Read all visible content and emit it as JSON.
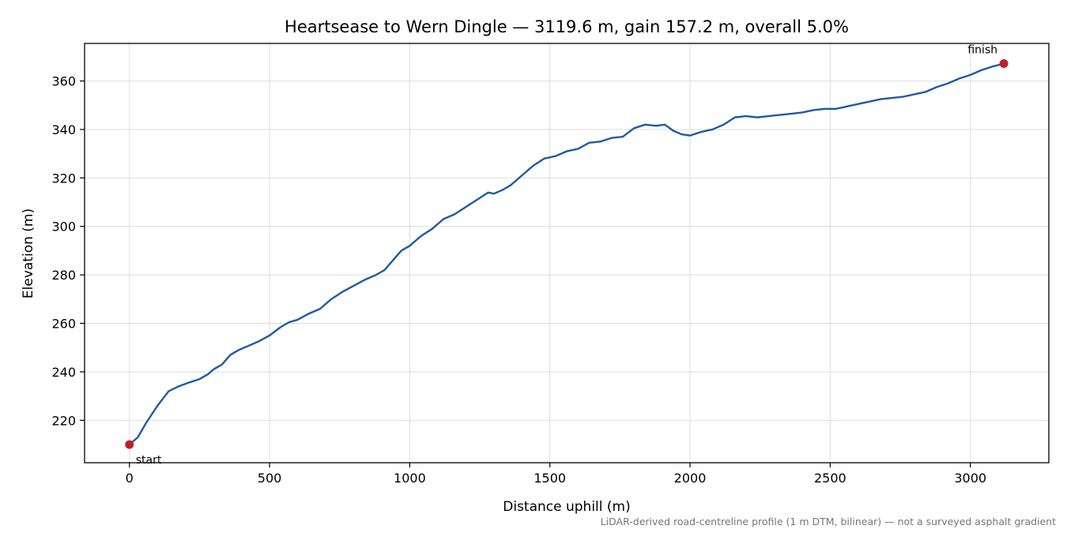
{
  "chart_data": {
    "type": "line",
    "title": "Heartsease to Wern Dingle — 3119.6 m, gain 157.2 m, overall 5.0%",
    "xlabel": "Distance uphill (m)",
    "ylabel": "Elevation (m)",
    "footnote": "LiDAR-derived road-centreline profile (1 m DTM, bilinear) — not a surveyed asphalt gradient",
    "xlim": [
      -160,
      3280
    ],
    "ylim": [
      202.5,
      375.5
    ],
    "xticks": [
      0,
      500,
      1000,
      1500,
      2000,
      2500,
      3000
    ],
    "yticks": [
      220,
      240,
      260,
      280,
      300,
      320,
      340,
      360
    ],
    "grid": true,
    "line_color": "#1f5aa6",
    "marker_color": "#c41e2a",
    "series": [
      {
        "x": [
          0,
          30,
          60,
          100,
          140,
          175,
          210,
          250,
          280,
          300,
          330,
          360,
          390,
          420,
          460,
          500,
          540,
          570,
          600,
          640,
          680,
          720,
          760,
          800,
          840,
          880,
          910,
          940,
          970,
          1000,
          1040,
          1080,
          1120,
          1160,
          1200,
          1240,
          1280,
          1300,
          1330,
          1360,
          1400,
          1440,
          1480,
          1520,
          1560,
          1600,
          1640,
          1680,
          1720,
          1760,
          1800,
          1840,
          1880,
          1910,
          1940,
          1970,
          2000,
          2040,
          2080,
          2120,
          2160,
          2200,
          2240,
          2280,
          2320,
          2360,
          2400,
          2440,
          2480,
          2520,
          2560,
          2600,
          2640,
          2680,
          2720,
          2760,
          2800,
          2840,
          2880,
          2920,
          2960,
          3000,
          3040,
          3080,
          3119.6
        ],
        "y": [
          210,
          213,
          219,
          226,
          232,
          234,
          235.5,
          237,
          239,
          241,
          243,
          247,
          249,
          250.5,
          252.5,
          255,
          258.5,
          260.5,
          261.5,
          264,
          266,
          270,
          273,
          275.5,
          278,
          280,
          282,
          286,
          290,
          292,
          296,
          299,
          303,
          305,
          308,
          311,
          314,
          313.5,
          315,
          317,
          321,
          325,
          328,
          329,
          331,
          332,
          334.5,
          335,
          336.5,
          337,
          340.5,
          342,
          341.5,
          342,
          339.5,
          338,
          337.5,
          339,
          340,
          342,
          345,
          345.5,
          345,
          345.5,
          346,
          346.5,
          347,
          348,
          348.5,
          348.5,
          349.5,
          350.5,
          351.5,
          352.5,
          353,
          353.5,
          354.5,
          355.5,
          357.5,
          359,
          361,
          362.5,
          364.5,
          366,
          367.2
        ]
      }
    ],
    "annotations": [
      {
        "text": "start",
        "x": 0,
        "y": 210
      },
      {
        "text": "finish",
        "x": 3119.6,
        "y": 367.2
      }
    ]
  }
}
